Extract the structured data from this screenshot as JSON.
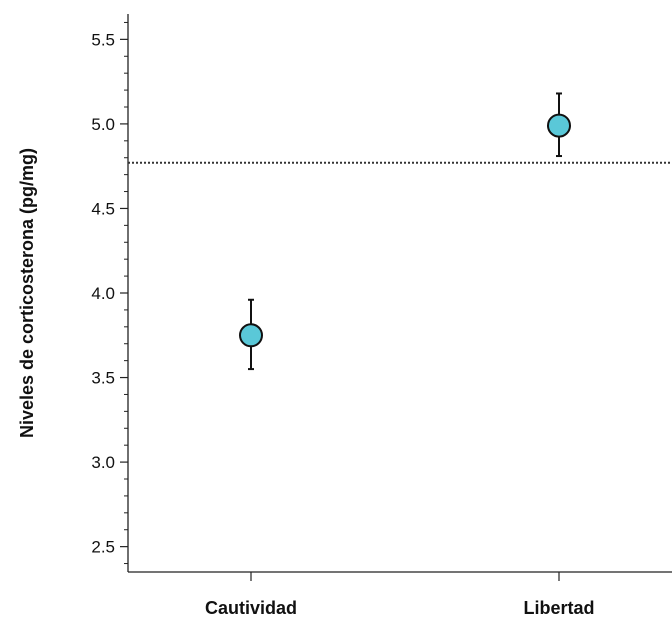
{
  "chart_data": {
    "type": "scatter",
    "title": "",
    "xlabel": "",
    "ylabel": "Niveles de corticosterona (pg/mg)",
    "categories": [
      "Cautividad",
      "Libertad"
    ],
    "series": [
      {
        "values": [
          3.75,
          4.99
        ],
        "err_low": [
          3.55,
          4.81
        ],
        "err_high": [
          3.96,
          5.18
        ]
      }
    ],
    "reference_line": {
      "value": 4.77,
      "style": "dotted"
    },
    "y_ticks": [
      "2.5",
      "3.0",
      "3.5",
      "4.0",
      "4.5",
      "5.0",
      "5.5"
    ],
    "ylim": [
      2.35,
      5.65
    ],
    "grid": false,
    "legend": "none",
    "colors": {
      "marker_fill": "#5ac8d8",
      "marker_stroke": "#111111",
      "axis": "#222222"
    }
  }
}
